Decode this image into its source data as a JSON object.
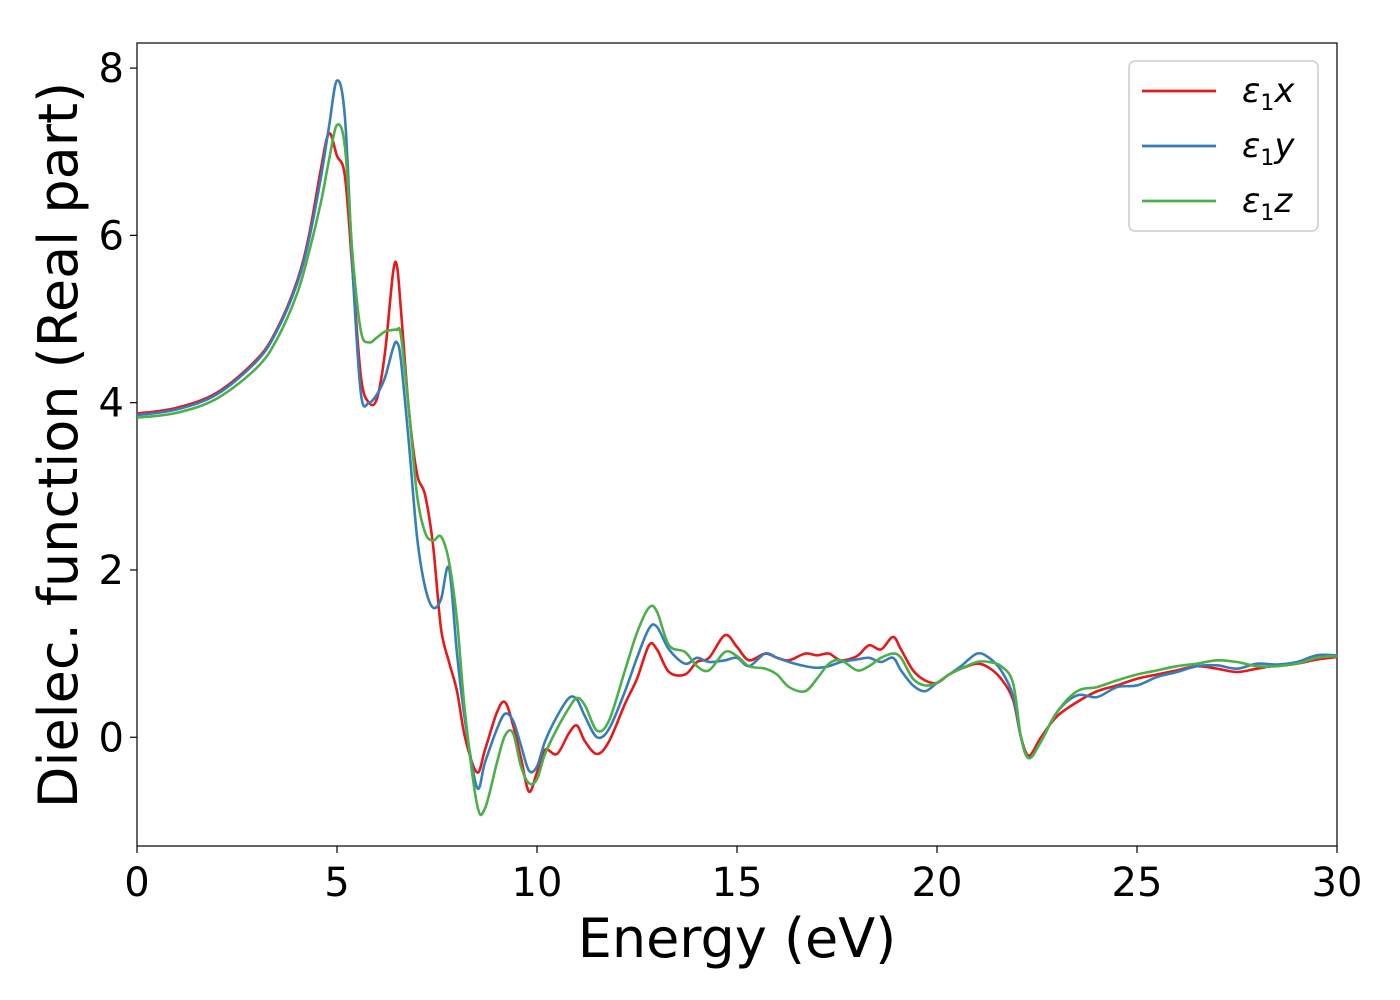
{
  "chart_data": {
    "type": "line",
    "xlabel": "Energy (eV)",
    "ylabel": "Dielec. function (Real part)",
    "xlim": [
      0,
      30
    ],
    "ylim": [
      -1.3,
      8.3
    ],
    "xticks": [
      0,
      5,
      10,
      15,
      20,
      25,
      30
    ],
    "yticks": [
      0,
      2,
      4,
      6,
      8
    ],
    "grid": false,
    "legend_position": "top-right",
    "series": [
      {
        "name": "ε1x",
        "legend": {
          "base": "ε",
          "sub": "1",
          "var": "x"
        },
        "color": "#e41a1c",
        "x": [
          0,
          1,
          2,
          3,
          3.5,
          4,
          4.3,
          4.6,
          4.8,
          5.0,
          5.2,
          5.4,
          5.6,
          5.8,
          6.0,
          6.2,
          6.4,
          6.5,
          6.6,
          6.8,
          7.0,
          7.2,
          7.4,
          7.6,
          7.8,
          8.0,
          8.2,
          8.5,
          8.7,
          9.0,
          9.2,
          9.4,
          9.6,
          9.8,
          10.0,
          10.2,
          10.5,
          10.8,
          11.0,
          11.2,
          11.5,
          11.8,
          12.2,
          12.5,
          12.8,
          13.0,
          13.3,
          13.7,
          14.0,
          14.3,
          14.7,
          15.0,
          15.3,
          15.7,
          16.0,
          16.3,
          16.7,
          17.0,
          17.3,
          17.6,
          18.0,
          18.3,
          18.6,
          18.9,
          19.1,
          19.4,
          19.7,
          20.0,
          20.3,
          20.6,
          21.0,
          21.3,
          21.6,
          21.9,
          22.1,
          22.3,
          22.6,
          23.0,
          23.5,
          24.0,
          24.5,
          25.0,
          25.5,
          26.0,
          26.5,
          27.0,
          27.5,
          28.0,
          28.5,
          29.0,
          29.5,
          30.0
        ],
        "y": [
          3.87,
          3.94,
          4.12,
          4.52,
          4.88,
          5.45,
          6.0,
          6.8,
          7.22,
          6.95,
          6.7,
          5.5,
          4.3,
          4.0,
          4.05,
          4.6,
          5.55,
          5.63,
          5.1,
          3.9,
          3.15,
          2.9,
          2.3,
          1.3,
          0.9,
          0.55,
          0.0,
          -0.42,
          -0.15,
          0.3,
          0.42,
          0.15,
          -0.25,
          -0.65,
          -0.42,
          -0.15,
          -0.2,
          0.05,
          0.14,
          -0.05,
          -0.2,
          -0.05,
          0.4,
          0.7,
          1.1,
          1.05,
          0.78,
          0.75,
          0.9,
          0.95,
          1.22,
          1.08,
          0.92,
          1.0,
          0.95,
          0.92,
          1.0,
          0.98,
          1.0,
          0.92,
          0.97,
          1.1,
          1.05,
          1.2,
          1.05,
          0.8,
          0.68,
          0.65,
          0.75,
          0.82,
          0.88,
          0.83,
          0.7,
          0.45,
          0.0,
          -0.22,
          0.0,
          0.25,
          0.42,
          0.55,
          0.62,
          0.7,
          0.75,
          0.8,
          0.85,
          0.82,
          0.78,
          0.82,
          0.86,
          0.88,
          0.93,
          0.96
        ]
      },
      {
        "name": "ε1y",
        "legend": {
          "base": "ε",
          "sub": "1",
          "var": "y"
        },
        "color": "#377eb8",
        "x": [
          0,
          1,
          2,
          3,
          3.5,
          4,
          4.3,
          4.6,
          4.8,
          5.0,
          5.2,
          5.4,
          5.6,
          5.8,
          6.0,
          6.2,
          6.4,
          6.5,
          6.6,
          6.8,
          7.0,
          7.2,
          7.4,
          7.6,
          7.8,
          8.0,
          8.2,
          8.5,
          8.7,
          9.0,
          9.2,
          9.4,
          9.6,
          9.8,
          10.0,
          10.2,
          10.5,
          10.8,
          11.0,
          11.2,
          11.5,
          11.8,
          12.2,
          12.5,
          12.8,
          13.0,
          13.3,
          13.7,
          14.0,
          14.3,
          14.7,
          15.0,
          15.3,
          15.7,
          16.0,
          16.3,
          16.7,
          17.0,
          17.3,
          17.6,
          18.0,
          18.3,
          18.6,
          18.9,
          19.1,
          19.4,
          19.7,
          20.0,
          20.3,
          20.6,
          21.0,
          21.3,
          21.6,
          21.9,
          22.1,
          22.3,
          22.6,
          23.0,
          23.5,
          24.0,
          24.5,
          25.0,
          25.5,
          26.0,
          26.5,
          27.0,
          27.5,
          28.0,
          28.5,
          29.0,
          29.5,
          30.0
        ],
        "y": [
          3.85,
          3.92,
          4.1,
          4.5,
          4.86,
          5.42,
          5.95,
          6.7,
          7.3,
          7.85,
          7.4,
          5.5,
          4.1,
          4.0,
          4.1,
          4.3,
          4.65,
          4.72,
          4.5,
          3.5,
          2.4,
          1.8,
          1.55,
          1.65,
          2.02,
          1.0,
          0.2,
          -0.6,
          -0.3,
          0.1,
          0.28,
          0.2,
          -0.1,
          -0.4,
          -0.35,
          -0.05,
          0.25,
          0.47,
          0.45,
          0.25,
          0.0,
          0.1,
          0.55,
          0.95,
          1.3,
          1.32,
          1.05,
          0.88,
          0.95,
          0.9,
          0.92,
          0.95,
          0.85,
          1.0,
          0.95,
          0.9,
          0.85,
          0.83,
          0.85,
          0.9,
          0.93,
          0.95,
          0.9,
          0.95,
          0.8,
          0.62,
          0.55,
          0.65,
          0.75,
          0.85,
          1.0,
          0.95,
          0.8,
          0.5,
          0.0,
          -0.25,
          -0.05,
          0.3,
          0.5,
          0.48,
          0.6,
          0.62,
          0.72,
          0.78,
          0.85,
          0.86,
          0.82,
          0.88,
          0.87,
          0.9,
          0.98,
          0.98
        ]
      },
      {
        "name": "ε1z",
        "legend": {
          "base": "ε",
          "sub": "1",
          "var": "z"
        },
        "color": "#4daf4a",
        "x": [
          0,
          1,
          2,
          3,
          3.5,
          4,
          4.3,
          4.6,
          4.8,
          5.0,
          5.2,
          5.4,
          5.6,
          5.8,
          6.0,
          6.2,
          6.4,
          6.5,
          6.6,
          6.8,
          7.0,
          7.2,
          7.4,
          7.6,
          7.8,
          8.0,
          8.2,
          8.5,
          8.7,
          9.0,
          9.2,
          9.4,
          9.6,
          9.8,
          10.0,
          10.2,
          10.5,
          10.8,
          11.0,
          11.2,
          11.5,
          11.8,
          12.2,
          12.5,
          12.8,
          13.0,
          13.3,
          13.7,
          14.0,
          14.3,
          14.7,
          15.0,
          15.3,
          15.7,
          16.0,
          16.3,
          16.7,
          17.0,
          17.3,
          17.6,
          18.0,
          18.3,
          18.6,
          18.9,
          19.1,
          19.4,
          19.7,
          20.0,
          20.3,
          20.6,
          21.0,
          21.3,
          21.6,
          21.9,
          22.1,
          22.3,
          22.6,
          23.0,
          23.5,
          24.0,
          24.5,
          25.0,
          25.5,
          26.0,
          26.5,
          27.0,
          27.5,
          28.0,
          28.5,
          29.0,
          29.5,
          30.0
        ],
        "y": [
          3.82,
          3.88,
          4.05,
          4.42,
          4.76,
          5.3,
          5.8,
          6.4,
          6.9,
          7.32,
          7.05,
          5.7,
          4.85,
          4.72,
          4.78,
          4.85,
          4.87,
          4.87,
          4.8,
          3.9,
          2.9,
          2.45,
          2.35,
          2.4,
          2.1,
          1.4,
          0.3,
          -0.8,
          -0.85,
          -0.3,
          0.02,
          0.05,
          -0.35,
          -0.55,
          -0.5,
          -0.2,
          0.1,
          0.35,
          0.47,
          0.38,
          0.08,
          0.2,
          0.8,
          1.25,
          1.55,
          1.5,
          1.1,
          1.02,
          0.85,
          0.8,
          1.02,
          0.97,
          0.85,
          0.82,
          0.75,
          0.6,
          0.55,
          0.7,
          0.88,
          0.92,
          0.8,
          0.85,
          0.95,
          1.0,
          0.95,
          0.7,
          0.62,
          0.65,
          0.75,
          0.82,
          0.9,
          0.9,
          0.85,
          0.65,
          0.0,
          -0.25,
          -0.05,
          0.3,
          0.55,
          0.6,
          0.68,
          0.75,
          0.8,
          0.85,
          0.88,
          0.92,
          0.9,
          0.85,
          0.85,
          0.88,
          0.95,
          0.97
        ]
      }
    ]
  }
}
